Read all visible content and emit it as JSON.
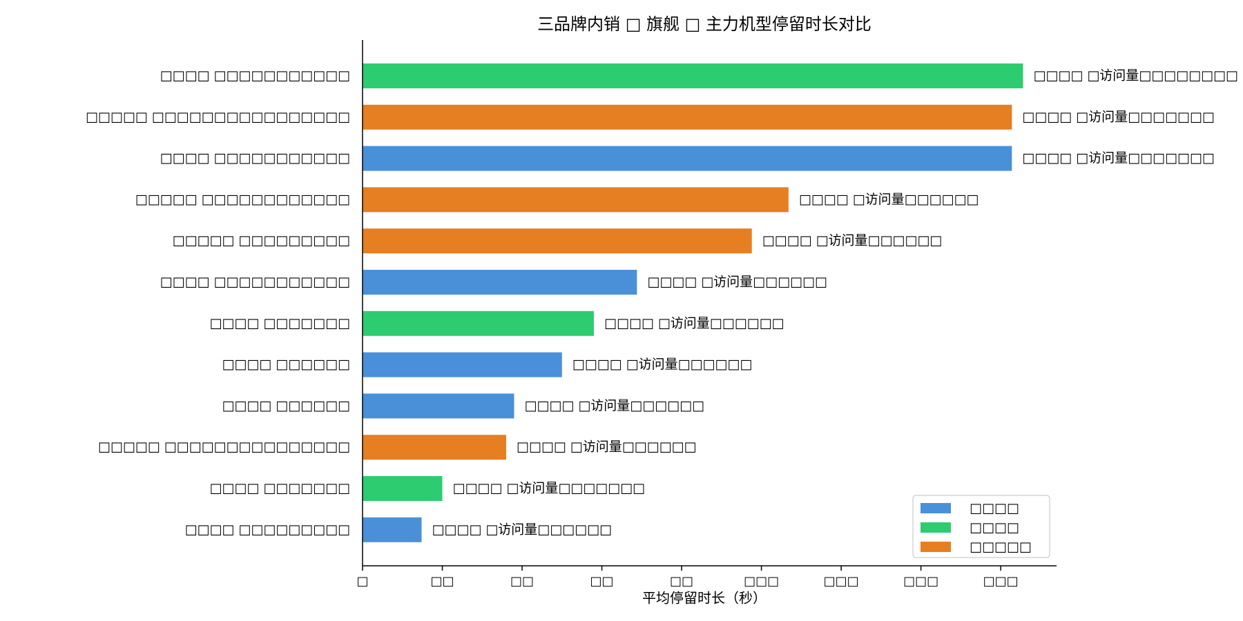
{
  "chart_data": {
    "type": "bar",
    "orientation": "horizontal",
    "title": "三品牌内销 □ 旗舰 □ 主力机型停留时长对比",
    "xlabel": "平均停留时长（秒）",
    "ylabel": "",
    "xlim": [
      0,
      435
    ],
    "xticks": [
      0,
      50,
      100,
      150,
      200,
      250,
      300,
      350,
      400
    ],
    "xtick_labels": [
      "□",
      "□□",
      "□□",
      "□□",
      "□□",
      "□□□",
      "□□□",
      "□□□",
      "□□□"
    ],
    "categories": [
      "□□□□ □□□□□□□□□□□",
      "□□□□□ □□□□□□□□□□□□□□□□",
      "□□□□ □□□□□□□□□□□",
      "□□□□□ □□□□□□□□□□□□",
      "□□□□□ □□□□□□□□□",
      "□□□□ □□□□□□□□□□□",
      "□□□□ □□□□□□□",
      "□□□□ □□□□□□",
      "□□□□ □□□□□□",
      "□□□□□ □□□□□□□□□□□□□□□",
      "□□□□ □□□□□□□",
      "□□□□ □□□□□□□□□"
    ],
    "values": [
      414,
      407,
      407,
      267,
      244,
      172,
      145,
      125,
      95,
      90,
      50,
      37
    ],
    "groups": [
      1,
      2,
      0,
      2,
      2,
      0,
      1,
      0,
      0,
      2,
      1,
      0
    ],
    "data_labels": [
      "□□□□ □访问量□□□□□□□□",
      "□□□□ □访问量□□□□□□□",
      "□□□□ □访问量□□□□□□□",
      "□□□□ □访问量□□□□□□",
      "□□□□ □访问量□□□□□□",
      "□□□□ □访问量□□□□□□",
      "□□□□ □访问量□□□□□□",
      "□□□□ □访问量□□□□□□",
      "□□□□ □访问量□□□□□□",
      "□□□□ □访问量□□□□□□",
      "□□□□ □访问量□□□□□□□",
      "□□□□ □访问量□□□□□□"
    ],
    "legend": {
      "placement": "lower-right",
      "entries": [
        {
          "label": "□□□□",
          "color": "#4a90d9"
        },
        {
          "label": "□□□□",
          "color": "#2ecc71"
        },
        {
          "label": "□□□□□",
          "color": "#e67e22"
        }
      ]
    },
    "grid": false
  }
}
